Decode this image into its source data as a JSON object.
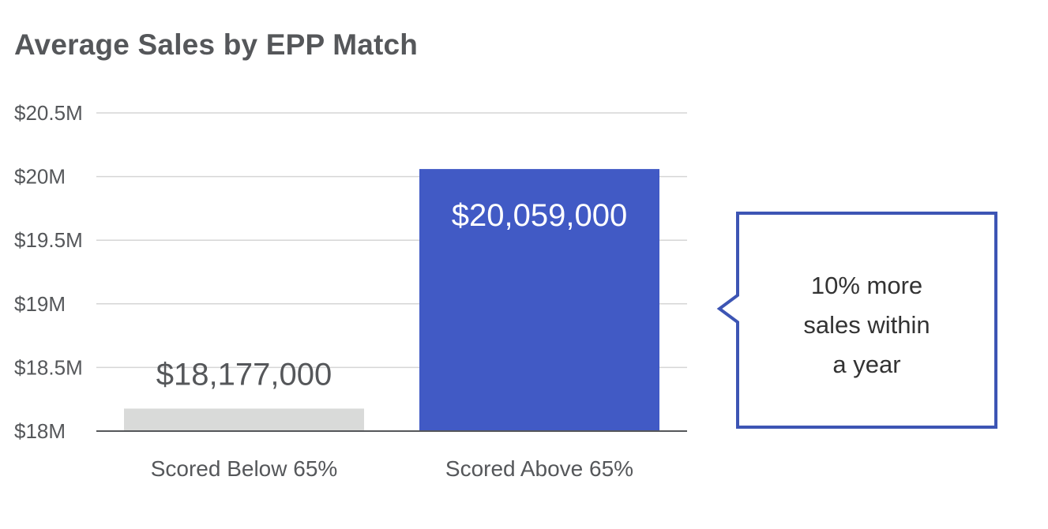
{
  "chart_data": {
    "type": "bar",
    "title": "Average Sales by EPP Match",
    "xlabel": "",
    "ylabel": "",
    "categories": [
      "Scored Below 65%",
      "Scored Above 65%"
    ],
    "values": [
      18177000,
      20059000
    ],
    "data_labels": [
      "$18,177,000",
      "$20,059,000"
    ],
    "bar_colors": [
      "#d9dad9",
      "#415ac5"
    ],
    "data_label_colors": [
      "#55575a",
      "#ffffff"
    ],
    "ylim": [
      18000000,
      20500000
    ],
    "y_ticks": [
      18000000,
      18500000,
      19000000,
      19500000,
      20000000,
      20500000
    ],
    "y_tick_labels": [
      "$18M",
      "$18.5M",
      "$19M",
      "$19.5M",
      "$20M",
      "$20.5M"
    ],
    "grid": true,
    "legend": "none",
    "annotation": {
      "lines": [
        "10% more",
        "sales within",
        "a year"
      ],
      "border_color": "#3d55b4"
    }
  }
}
